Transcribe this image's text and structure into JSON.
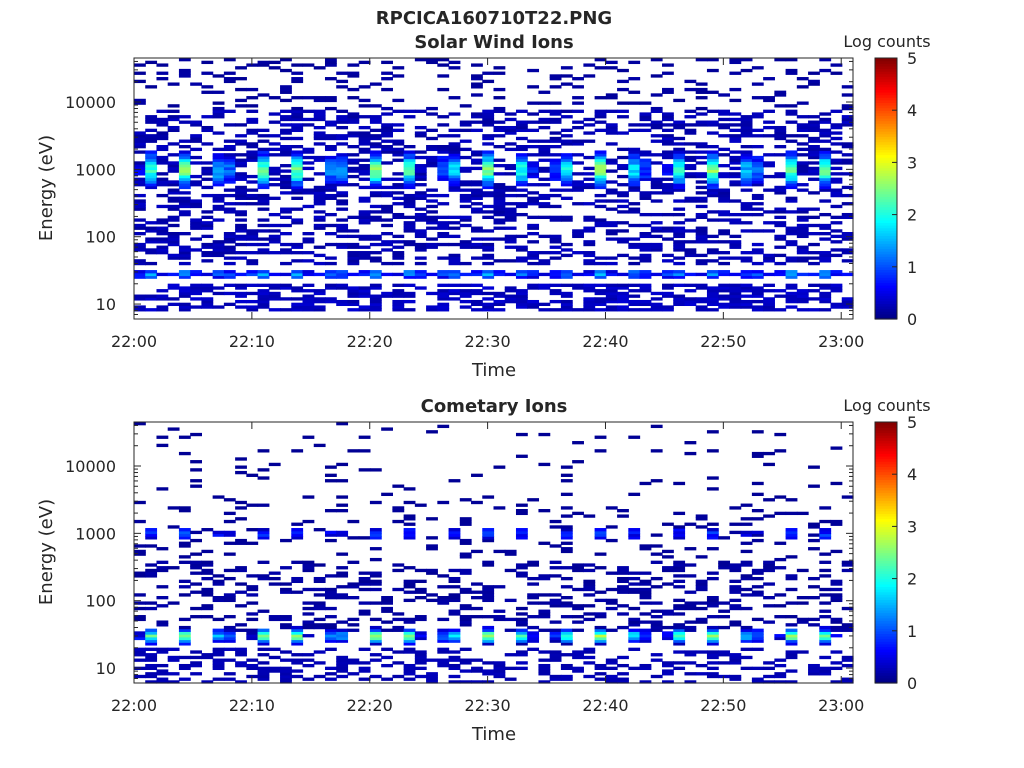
{
  "figure_title": "RPCICA160710T22.PNG",
  "chart_data": [
    {
      "type": "heatmap",
      "title": "Solar Wind Ions",
      "xlabel": "Time",
      "ylabel": "Energy (eV)",
      "x_range": [
        "22:00",
        "23:01"
      ],
      "y_range": [
        6,
        45000
      ],
      "y_scale": "log",
      "x_ticks": [
        "22:00",
        "22:10",
        "22:20",
        "22:30",
        "22:40",
        "22:50",
        "23:00"
      ],
      "y_ticks": [
        "10",
        "100",
        "1000",
        "10000"
      ],
      "colorbar": {
        "label": "Log counts",
        "range": [
          0,
          5
        ],
        "ticks": [
          "0",
          "1",
          "2",
          "3",
          "4",
          "5"
        ],
        "colormap": "jet"
      },
      "time_bins": 64,
      "energy_bins": 96,
      "features": {
        "bursts_period_min": 3.2,
        "solar_wind_peak_energy_eV": 1000,
        "solar_wind_peak_log_counts": 2.6,
        "low_energy_band_eV": 28,
        "low_energy_band_log_counts": 1.5
      }
    },
    {
      "type": "heatmap",
      "title": "Cometary Ions",
      "xlabel": "Time",
      "ylabel": "Energy (eV)",
      "x_range": [
        "22:00",
        "23:01"
      ],
      "y_range": [
        6,
        45000
      ],
      "y_scale": "log",
      "x_ticks": [
        "22:00",
        "22:10",
        "22:20",
        "22:30",
        "22:40",
        "22:50",
        "23:00"
      ],
      "y_ticks": [
        "10",
        "100",
        "1000",
        "10000"
      ],
      "colorbar": {
        "label": "Log counts",
        "range": [
          0,
          5
        ],
        "ticks": [
          "0",
          "1",
          "2",
          "3",
          "4",
          "5"
        ],
        "colormap": "jet"
      },
      "time_bins": 64,
      "energy_bins": 96,
      "features": {
        "bursts_period_min": 3.2,
        "cometary_peak_energy_eV": 30,
        "cometary_peak_log_counts": 2.7,
        "high_energy_band_eV": 1000,
        "high_energy_band_log_counts": 0.8
      }
    }
  ]
}
